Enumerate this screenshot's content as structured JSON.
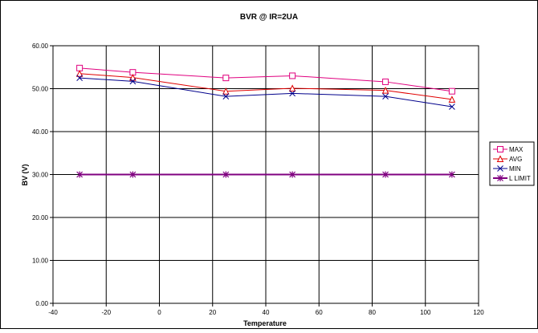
{
  "chart_data": {
    "type": "line",
    "title": "BVR @ IR=2UA",
    "xlabel": "Temperature",
    "ylabel": "BV (V)",
    "xlim": [
      -40,
      120
    ],
    "ylim": [
      0,
      60
    ],
    "x_ticks": [
      "-40",
      "-20",
      "0",
      "20",
      "40",
      "60",
      "80",
      "100",
      "120"
    ],
    "y_ticks": [
      "0.00",
      "10.00",
      "20.00",
      "30.00",
      "40.00",
      "50.00",
      "60.00"
    ],
    "grid": true,
    "legend_position": "right",
    "x": [
      -30,
      -10,
      25,
      50,
      85,
      110
    ],
    "series": [
      {
        "name": "MAX",
        "values": [
          54.8,
          53.8,
          52.5,
          53.0,
          51.6,
          49.4
        ],
        "color": "#e0007f",
        "marker": "square"
      },
      {
        "name": "AVG",
        "values": [
          53.5,
          52.6,
          49.4,
          50.1,
          49.6,
          47.5
        ],
        "color": "#e00000",
        "marker": "triangle"
      },
      {
        "name": "MIN",
        "values": [
          52.5,
          51.7,
          48.2,
          48.9,
          48.2,
          45.8
        ],
        "color": "#00008b",
        "marker": "x"
      },
      {
        "name": "L LIMIT",
        "values": [
          30.0,
          30.0,
          30.0,
          30.0,
          30.0,
          30.0
        ],
        "color": "#800080",
        "marker": "asterisk"
      }
    ]
  }
}
